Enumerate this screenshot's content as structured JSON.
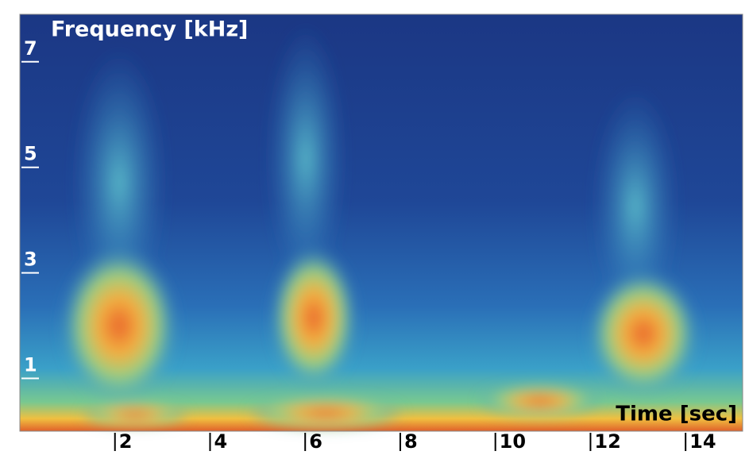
{
  "chart_data": {
    "type": "spectrogram",
    "y_label": "Frequency [kHz]",
    "x_label": "Time [sec]",
    "xlim": [
      0,
      15.2
    ],
    "xticks": [
      2,
      4,
      6,
      8,
      10,
      12,
      14
    ],
    "ylim": [
      0,
      7.9
    ],
    "yticks": [
      1,
      3,
      5,
      7
    ]
  }
}
